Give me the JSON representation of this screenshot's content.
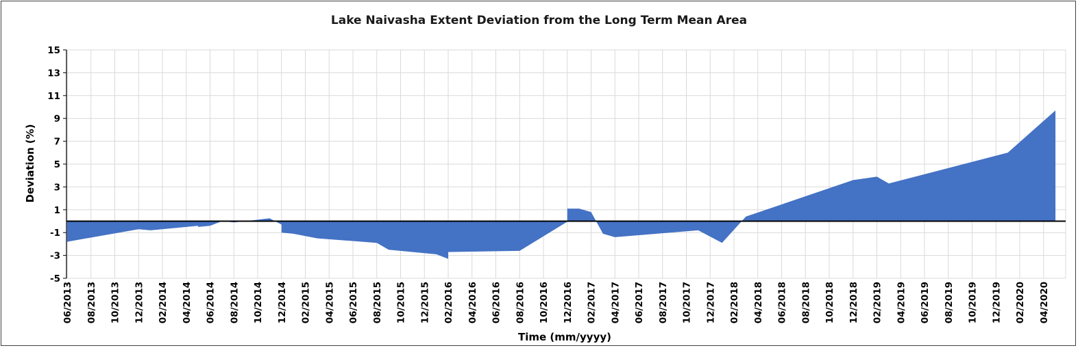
{
  "chart_data": {
    "type": "area",
    "title": "Lake Naivasha Extent Deviation from the Long Term Mean Area",
    "xlabel": "Time (mm/yyyy)",
    "ylabel": "Deviation (%)",
    "ylim": [
      -5,
      15
    ],
    "yticks": [
      -5,
      -3,
      -1,
      1,
      3,
      5,
      7,
      9,
      11,
      13,
      15
    ],
    "x_tick_labels": [
      "06/2013",
      "08/2013",
      "10/2013",
      "12/2013",
      "02/2014",
      "04/2014",
      "06/2014",
      "08/2014",
      "10/2014",
      "12/2014",
      "02/2015",
      "04/2015",
      "06/2015",
      "08/2015",
      "10/2015",
      "12/2015",
      "02/2016",
      "04/2016",
      "06/2016",
      "08/2016",
      "10/2016",
      "12/2016",
      "02/2017",
      "04/2017",
      "06/2017",
      "08/2017",
      "10/2017",
      "12/2017",
      "02/2018",
      "04/2018",
      "06/2018",
      "08/2018",
      "10/2018",
      "12/2018",
      "02/2019",
      "04/2019",
      "06/2019",
      "08/2019",
      "10/2019",
      "12/2019",
      "02/2020",
      "04/2020"
    ],
    "grid": true,
    "fill_color": "#4472C4",
    "series": [
      {
        "x": [
          "06/2013",
          "12/2013",
          "01/2014",
          "05/2014",
          "05/2014",
          "06/2014",
          "07/2014",
          "08/2014",
          "09/2014",
          "11/2014",
          "12/2014",
          "12/2014",
          "01/2015",
          "03/2015",
          "08/2015",
          "09/2015",
          "01/2016",
          "02/2016",
          "02/2016",
          "08/2016",
          "12/2016",
          "12/2016",
          "01/2017",
          "02/2017",
          "03/2017",
          "04/2017",
          "04/2017",
          "11/2017",
          "01/2018",
          "03/2018",
          "12/2018",
          "02/2019",
          "03/2019",
          "01/2020",
          "05/2020"
        ],
        "values": [
          -1.8,
          -0.7,
          -0.8,
          -0.4,
          -0.5,
          -0.4,
          0.0,
          -0.1,
          0.0,
          0.25,
          -0.3,
          -1.0,
          -1.1,
          -1.5,
          -1.9,
          -2.5,
          -2.9,
          -3.3,
          -2.7,
          -2.6,
          -0.05,
          1.1,
          1.1,
          0.8,
          -1.1,
          -1.4,
          -1.4,
          -0.8,
          -1.9,
          0.4,
          3.6,
          3.9,
          3.3,
          6.0,
          9.7
        ]
      }
    ]
  }
}
